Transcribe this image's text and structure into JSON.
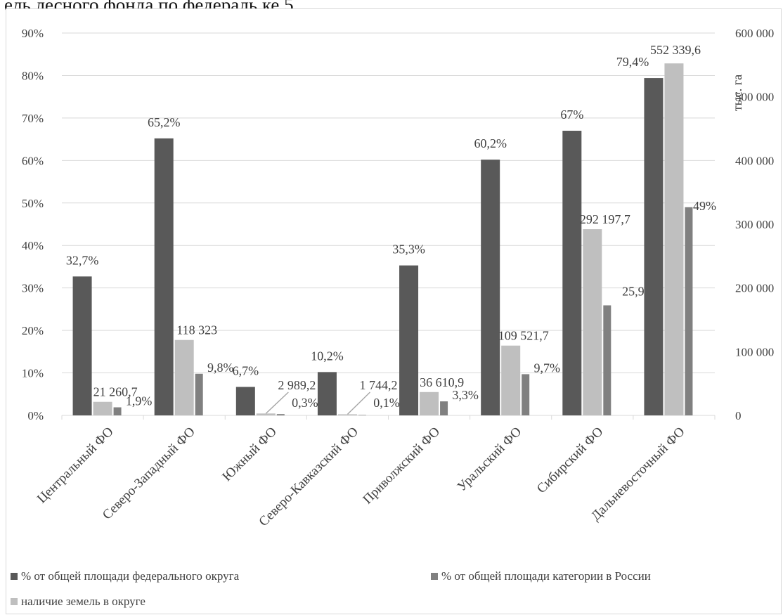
{
  "caption": "ель лесного фонда по федераль ке 5.",
  "colors": {
    "pct_federal_district": "#595959",
    "pct_russia_category": "#808080",
    "land_in_district": "#bfbfbf",
    "grid": "#d9d9d9",
    "text": "#404040"
  },
  "chart_data": {
    "type": "bar",
    "categories": [
      "Центральный ФО",
      "Северо-Западный ФО",
      "Южный ФО",
      "Северо-Кавказский ФО",
      "Приволжский ФО",
      "Уральский ФО",
      "Сибирский ФО",
      "Дальневосточный ФО"
    ],
    "series": [
      {
        "name": "% от общей площади федерального округа",
        "axis": "left",
        "values": [
          32.7,
          65.2,
          6.7,
          10.2,
          35.3,
          60.2,
          67,
          79.4
        ],
        "labels": [
          "32,7%",
          "65,2%",
          "6,7%",
          "10,2%",
          "35,3%",
          "60,2%",
          "67%",
          "79,4%"
        ]
      },
      {
        "name": "наличие земель в округе",
        "axis": "right",
        "values": [
          21260.7,
          118323,
          2989.2,
          1744.2,
          36610.9,
          109521.7,
          292197.7,
          552339.6
        ],
        "labels": [
          "21 260,7",
          "118 323",
          "2 989,2",
          "1 744,2",
          "36 610,9",
          "109 521,7",
          "292 197,7",
          "552 339,6"
        ]
      },
      {
        "name": "% от общей площади категории в России",
        "axis": "left",
        "values": [
          1.9,
          9.8,
          0.3,
          0.1,
          3.3,
          9.7,
          25.9,
          49
        ],
        "labels": [
          "1,9%",
          "9,8%",
          "0,3%",
          "0,1%",
          "3,3%",
          "9,7%",
          "25,9%",
          "49%"
        ]
      }
    ],
    "y_left": {
      "min": 0,
      "max": 90,
      "ticks": [
        "0%",
        "10%",
        "20%",
        "30%",
        "40%",
        "50%",
        "60%",
        "70%",
        "80%",
        "90%"
      ]
    },
    "y_right": {
      "min": 0,
      "max": 600000,
      "label": "тыс. га",
      "ticks": [
        "0",
        "100 000",
        "200 000",
        "300 000",
        "400 000",
        "500 000",
        "600 000"
      ]
    },
    "grid": true,
    "legend": {
      "position": "bottom",
      "entries": [
        "% от общей площади федерального округа",
        "% от общей площади категории в России",
        "наличие земель в округе"
      ]
    }
  }
}
